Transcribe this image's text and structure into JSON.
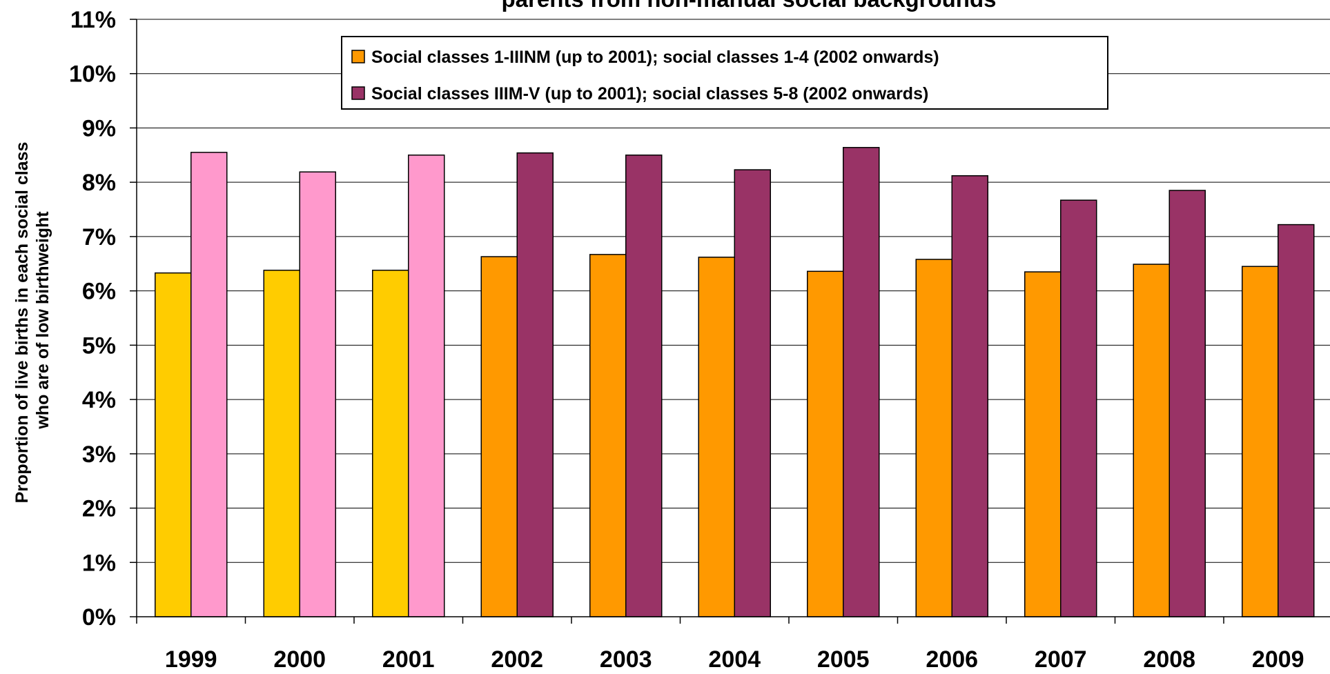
{
  "chart_data": {
    "type": "bar",
    "title": "parents from non-manual social backgrounds",
    "ylabel": "Proportion of live births in each social class who are of low birthweight",
    "ylabel_lines": [
      "Proportion of live births in each social class",
      "who are of low birthweight"
    ],
    "xlabel": "",
    "ylim": [
      0,
      0.11
    ],
    "ytick_values": [
      0,
      0.01,
      0.02,
      0.03,
      0.04,
      0.05,
      0.06,
      0.07,
      0.08,
      0.09,
      0.1,
      0.11
    ],
    "ytick_labels": [
      "0%",
      "1%",
      "2%",
      "3%",
      "4%",
      "5%",
      "6%",
      "7%",
      "8%",
      "9%",
      "10%",
      "11%"
    ],
    "categories": [
      "1999",
      "2000",
      "2001",
      "2002",
      "2003",
      "2004",
      "2005",
      "2006",
      "2007",
      "2008",
      "2009"
    ],
    "grid": true,
    "legend_position": "top-center",
    "series": [
      {
        "name": "Social classes 1-IIINM (up to 2001); social classes 1-4 (2002 onwards)",
        "values": [
          0.0633,
          0.0638,
          0.0638,
          0.0663,
          0.0667,
          0.0662,
          0.0636,
          0.0658,
          0.0635,
          0.0649,
          0.0645
        ],
        "colors": [
          "#FFCC00",
          "#FFCC00",
          "#FFCC00",
          "#FF9900",
          "#FF9900",
          "#FF9900",
          "#FF9900",
          "#FF9900",
          "#FF9900",
          "#FF9900",
          "#FF9900"
        ],
        "legend_color": "#FF9900"
      },
      {
        "name": "Social classes IIIM-V (up to 2001); social classes 5-8 (2002 onwards)",
        "values": [
          0.0855,
          0.0819,
          0.085,
          0.0854,
          0.085,
          0.0823,
          0.0864,
          0.0812,
          0.0767,
          0.0785,
          0.0722
        ],
        "colors": [
          "#FF99CC",
          "#FF99CC",
          "#FF99CC",
          "#993366",
          "#993366",
          "#993366",
          "#993366",
          "#993366",
          "#993366",
          "#993366",
          "#993366"
        ],
        "legend_color": "#993366"
      }
    ]
  }
}
